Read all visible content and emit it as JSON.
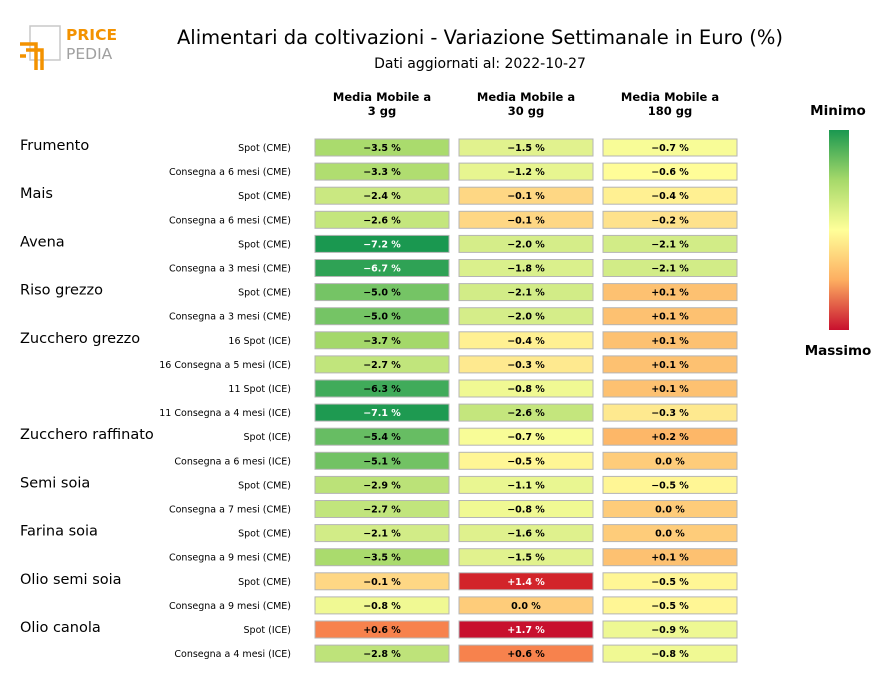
{
  "logo": {
    "word1": "PRICE",
    "word2": "PEDIA",
    "accent_color": "#f39200",
    "gray_color": "#a0a0a0"
  },
  "title": "Alimentari da coltivazioni - Variazione Settimanale in Euro (%)",
  "subtitle": "Dati aggiornati al: 2022-10-27",
  "chart_data": {
    "type": "heatmap",
    "columns": [
      "Media Mobile a\n3 gg",
      "Media Mobile a\n30 gg",
      "Media Mobile a\n180 gg"
    ],
    "legend": {
      "min_label": "Minimo",
      "max_label": "Massimo"
    },
    "colorscale": [
      "#1a9850",
      "#66bd63",
      "#a6d96a",
      "#d9ef8b",
      "#ffff99",
      "#fee08b",
      "#fdae61",
      "#f46d43",
      "#d73027",
      "#c8102e"
    ],
    "rows": [
      {
        "group": "Frumento",
        "label": "Spot (CME)",
        "values": [
          -3.5,
          -1.5,
          -0.7
        ],
        "text": [
          "−3.5 %",
          "−1.5 %",
          "−0.7 %"
        ]
      },
      {
        "group": "",
        "label": "Consegna a 6 mesi (CME)",
        "values": [
          -3.3,
          -1.2,
          -0.6
        ],
        "text": [
          "−3.3 %",
          "−1.2 %",
          "−0.6 %"
        ]
      },
      {
        "group": "Mais",
        "label": "Spot (CME)",
        "values": [
          -2.4,
          -0.1,
          -0.4
        ],
        "text": [
          "−2.4 %",
          "−0.1 %",
          "−0.4 %"
        ]
      },
      {
        "group": "",
        "label": "Consegna a 6 mesi (CME)",
        "values": [
          -2.6,
          -0.1,
          -0.2
        ],
        "text": [
          "−2.6 %",
          "−0.1 %",
          "−0.2 %"
        ]
      },
      {
        "group": "Avena",
        "label": "Spot (CME)",
        "values": [
          -7.2,
          -2.0,
          -2.1
        ],
        "text": [
          "−7.2 %",
          "−2.0 %",
          "−2.1 %"
        ]
      },
      {
        "group": "",
        "label": "Consegna a 3 mesi (CME)",
        "values": [
          -6.7,
          -1.8,
          -2.1
        ],
        "text": [
          "−6.7 %",
          "−1.8 %",
          "−2.1 %"
        ]
      },
      {
        "group": "Riso grezzo",
        "label": "Spot (CME)",
        "values": [
          -5.0,
          -2.1,
          0.1
        ],
        "text": [
          "−5.0 %",
          "−2.1 %",
          "+0.1 %"
        ]
      },
      {
        "group": "",
        "label": "Consegna a 3 mesi (CME)",
        "values": [
          -5.0,
          -2.0,
          0.1
        ],
        "text": [
          "−5.0 %",
          "−2.0 %",
          "+0.1 %"
        ]
      },
      {
        "group": "Zucchero grezzo",
        "label": "16 Spot (ICE)",
        "values": [
          -3.7,
          -0.4,
          0.1
        ],
        "text": [
          "−3.7 %",
          "−0.4 %",
          "+0.1 %"
        ]
      },
      {
        "group": "",
        "label": "16 Consegna a 5 mesi (ICE)",
        "values": [
          -2.7,
          -0.3,
          0.1
        ],
        "text": [
          "−2.7 %",
          "−0.3 %",
          "+0.1 %"
        ]
      },
      {
        "group": "",
        "label": "11 Spot (ICE)",
        "values": [
          -6.3,
          -0.8,
          0.1
        ],
        "text": [
          "−6.3 %",
          "−0.8 %",
          "+0.1 %"
        ]
      },
      {
        "group": "",
        "label": "11 Consegna a 4 mesi (ICE)",
        "values": [
          -7.1,
          -2.6,
          -0.3
        ],
        "text": [
          "−7.1 %",
          "−2.6 %",
          "−0.3 %"
        ]
      },
      {
        "group": "Zucchero raffinato",
        "label": "Spot (ICE)",
        "values": [
          -5.4,
          -0.7,
          0.2
        ],
        "text": [
          "−5.4 %",
          "−0.7 %",
          "+0.2 %"
        ]
      },
      {
        "group": "",
        "label": "Consegna a 6 mesi (ICE)",
        "values": [
          -5.1,
          -0.5,
          0.0
        ],
        "text": [
          "−5.1 %",
          "−0.5 %",
          "0.0 %"
        ]
      },
      {
        "group": "Semi soia",
        "label": "Spot (CME)",
        "values": [
          -2.9,
          -1.1,
          -0.5
        ],
        "text": [
          "−2.9 %",
          "−1.1 %",
          "−0.5 %"
        ]
      },
      {
        "group": "",
        "label": "Consegna a 7 mesi (CME)",
        "values": [
          -2.7,
          -0.8,
          0.0
        ],
        "text": [
          "−2.7 %",
          "−0.8 %",
          "0.0 %"
        ]
      },
      {
        "group": "Farina soia",
        "label": "Spot (CME)",
        "values": [
          -2.1,
          -1.6,
          0.0
        ],
        "text": [
          "−2.1 %",
          "−1.6 %",
          "0.0 %"
        ]
      },
      {
        "group": "",
        "label": "Consegna a 9 mesi (CME)",
        "values": [
          -3.5,
          -1.5,
          0.1
        ],
        "text": [
          "−3.5 %",
          "−1.5 %",
          "+0.1 %"
        ]
      },
      {
        "group": "Olio semi soia",
        "label": "Spot (CME)",
        "values": [
          -0.1,
          1.4,
          -0.5
        ],
        "text": [
          "−0.1 %",
          "+1.4 %",
          "−0.5 %"
        ]
      },
      {
        "group": "",
        "label": "Consegna a 9 mesi (CME)",
        "values": [
          -0.8,
          0.0,
          -0.5
        ],
        "text": [
          "−0.8 %",
          "0.0 %",
          "−0.5 %"
        ]
      },
      {
        "group": "Olio canola",
        "label": "Spot (ICE)",
        "values": [
          0.6,
          1.7,
          -0.9
        ],
        "text": [
          "+0.6 %",
          "+1.7 %",
          "−0.9 %"
        ]
      },
      {
        "group": "",
        "label": "Consegna a 4 mesi (ICE)",
        "values": [
          -2.8,
          0.6,
          -0.8
        ],
        "text": [
          "−2.8 %",
          "+0.6 %",
          "−0.8 %"
        ]
      }
    ]
  }
}
